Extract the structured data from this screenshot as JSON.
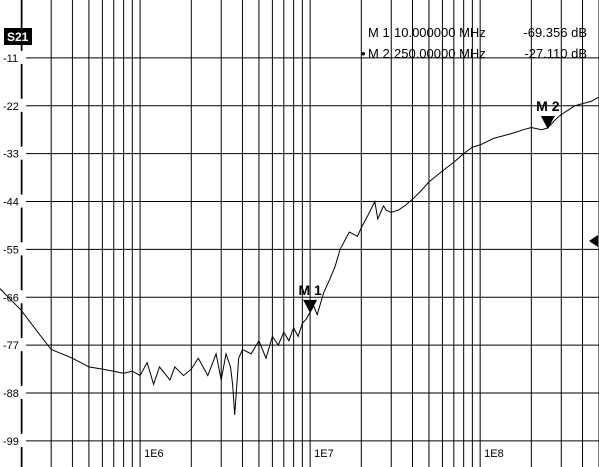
{
  "trace_label": "S21",
  "marker_readouts": [
    {
      "prefix": "",
      "name": "M 1",
      "freq": "10.000000 MHz",
      "value": "-69.356 dB"
    },
    {
      "prefix": "•",
      "name": "M 2",
      "freq": "250.00000 MHz",
      "value": "-27.110 dB"
    }
  ],
  "colors": {
    "background": "#ffffff",
    "grid": "#000000",
    "trace": "#000000",
    "badge": "#000000"
  },
  "chart_data": {
    "type": "line",
    "title": "",
    "xlabel": "",
    "ylabel": "",
    "x_scale": "log",
    "grid": true,
    "xlim": [
      150000,
      500000000
    ],
    "ylim": [
      -105,
      0
    ],
    "y_ticks": [
      "-11",
      "-22",
      "-33",
      "-44",
      "-55",
      "-66",
      "-77",
      "-88",
      "-99"
    ],
    "y_tick_values": [
      -11,
      -22,
      -33,
      -44,
      -55,
      -66,
      -77,
      -88,
      -99
    ],
    "x_ticks": [
      "1E6",
      "1E7",
      "1E8"
    ],
    "x_tick_values": [
      1000000,
      10000000,
      100000000
    ],
    "series": [
      {
        "x": [
          150000,
          200000,
          250000,
          300000,
          400000,
          500000,
          600000,
          700000,
          800000,
          900000,
          1000000,
          1100000,
          1200000,
          1300000,
          1500000,
          1600000,
          1800000,
          2000000,
          2200000,
          2500000,
          2800000,
          3000000,
          3200000,
          3400000,
          3500000,
          3600000,
          3800000,
          4000000,
          4500000,
          5000000,
          5500000,
          6000000,
          6500000,
          7000000,
          7500000,
          8000000,
          8500000,
          9000000,
          9500000,
          10000000,
          10500000,
          11000000,
          12000000,
          13000000,
          14000000,
          15000000,
          17000000,
          19000000,
          20000000,
          22000000,
          24000000,
          25000000,
          27000000,
          28000000,
          30000000,
          33000000,
          36000000,
          40000000,
          45000000,
          50000000,
          60000000,
          70000000,
          80000000,
          90000000,
          100000000,
          120000000,
          150000000,
          180000000,
          200000000,
          230000000,
          250000000,
          280000000,
          300000000,
          330000000,
          360000000,
          400000000,
          450000000,
          500000000
        ],
        "values": [
          -64,
          -69,
          -74,
          -78,
          -80,
          -82,
          -82.5,
          -83,
          -83.5,
          -83,
          -84,
          -81,
          -86,
          -82,
          -85,
          -82,
          -84,
          -82.5,
          -80,
          -84,
          -79,
          -85,
          -79,
          -82,
          -86,
          -93,
          -80,
          -78,
          -79,
          -76,
          -80,
          -75,
          -77,
          -74,
          -76,
          -73,
          -75,
          -72,
          -71,
          -69.4,
          -68,
          -70,
          -65,
          -62,
          -59,
          -55,
          -51,
          -52,
          -50,
          -47,
          -44,
          -48,
          -45,
          -46,
          -46.5,
          -46,
          -45,
          -43.5,
          -41.5,
          -39.5,
          -37,
          -35,
          -33,
          -31.5,
          -31,
          -29.5,
          -28.5,
          -27.5,
          -27,
          -27.5,
          -27.1,
          -25,
          -24,
          -23,
          -22,
          -21.5,
          -21,
          -20
        ]
      }
    ],
    "markers": [
      {
        "label": "M 1",
        "x": 10000000,
        "y": -69.356
      },
      {
        "label": "M 2",
        "x": 250000000,
        "y": -27.11
      }
    ]
  }
}
